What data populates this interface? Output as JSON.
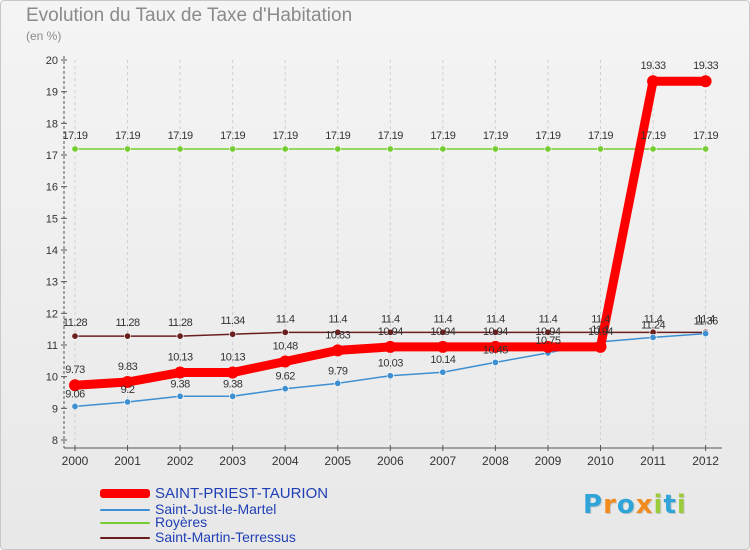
{
  "colors": {
    "saint_priest": "#ff0000",
    "saint_just": "#3d8fd1",
    "royeres": "#77cc33",
    "saint_martin": "#6b1e1e",
    "axis": "#555555",
    "grid": "#cfcfcf",
    "label": "#333333"
  },
  "logo": {
    "text": "Proxiti",
    "letters": [
      "P",
      "r",
      "o",
      "x",
      "i",
      "t",
      "i"
    ],
    "letter_colors": [
      "#2ea4d8",
      "#f28b1d",
      "#2ea4d8",
      "#f28b1d",
      "#9bcb3b",
      "#2ea4d8",
      "#9bcb3b"
    ]
  },
  "chart_data": {
    "type": "line",
    "title": "Evolution du Taux de Taxe d'Habitation",
    "subtitle": "(en %)",
    "x": [
      "2000",
      "2001",
      "2002",
      "2003",
      "2004",
      "2005",
      "2006",
      "2007",
      "2008",
      "2009",
      "2010",
      "2011",
      "2012"
    ],
    "ylim": [
      8,
      20
    ],
    "yticks": [
      8,
      9,
      10,
      11,
      12,
      13,
      14,
      15,
      16,
      17,
      18,
      19,
      20
    ],
    "legend_position": "bottom-left",
    "series": [
      {
        "name": "SAINT-PRIEST-TAURION",
        "values": [
          9.73,
          9.83,
          10.13,
          10.13,
          10.48,
          10.83,
          10.94,
          10.94,
          10.94,
          10.94,
          10.94,
          19.33,
          19.33
        ],
        "labels": [
          "9.73",
          "9.83",
          "10.13",
          "10.13",
          "10.48",
          "10.83",
          "10.94",
          "10.94",
          "10.94",
          "10.94",
          "10.94",
          "19.33",
          "19.33"
        ],
        "color_key": "saint_priest",
        "emphasis": true
      },
      {
        "name": "Saint-Just-le-Martel",
        "values": [
          9.06,
          9.2,
          9.38,
          9.38,
          9.62,
          9.79,
          10.03,
          10.14,
          10.45,
          10.75,
          11.1,
          11.24,
          11.36
        ],
        "labels": [
          "9.06",
          "9.2",
          "9.38",
          "9.38",
          "9.62",
          "9.79",
          "10.03",
          "10.14",
          "10.45",
          "10.75",
          "11.1",
          "11.24",
          "11.36"
        ],
        "color_key": "saint_just"
      },
      {
        "name": "Royères",
        "values": [
          17.19,
          17.19,
          17.19,
          17.19,
          17.19,
          17.19,
          17.19,
          17.19,
          17.19,
          17.19,
          17.19,
          17.19,
          17.19
        ],
        "labels": [
          "17.19",
          "17.19",
          "17.19",
          "17.19",
          "17.19",
          "17.19",
          "17.19",
          "17.19",
          "17.19",
          "17.19",
          "17.19",
          "17.19",
          "17.19"
        ],
        "color_key": "royeres"
      },
      {
        "name": "Saint-Martin-Terressus",
        "values": [
          11.28,
          11.28,
          11.28,
          11.34,
          11.4,
          11.4,
          11.4,
          11.4,
          11.4,
          11.4,
          11.4,
          11.4,
          11.4
        ],
        "labels": [
          "11.28",
          "11.28",
          "11.28",
          "11.34",
          "11.4",
          "11.4",
          "11.4",
          "11.4",
          "11.4",
          "11.4",
          "11.4",
          "11.4",
          "11.4"
        ],
        "color_key": "saint_martin"
      }
    ]
  }
}
